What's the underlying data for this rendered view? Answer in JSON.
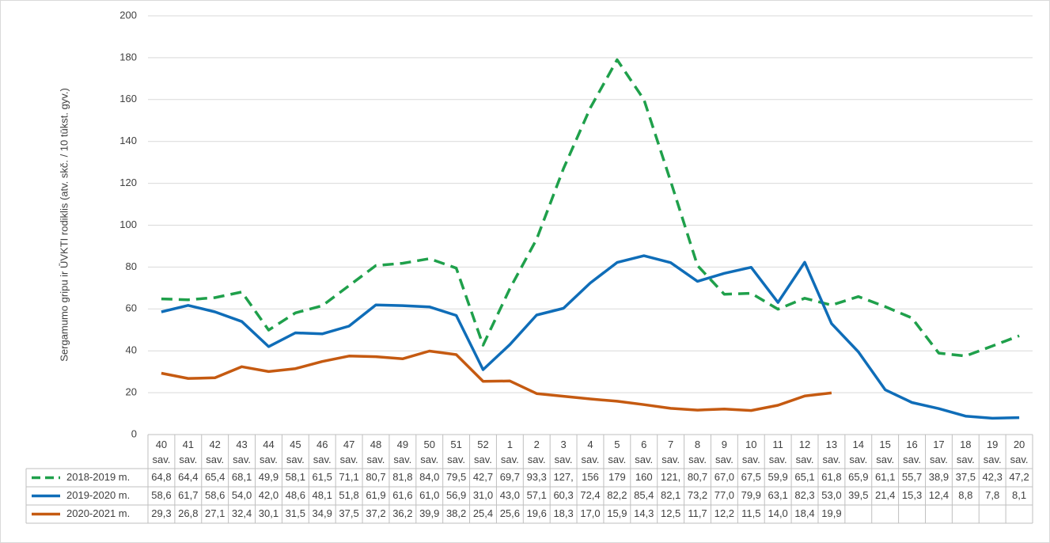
{
  "chart_data": {
    "type": "line",
    "y_label": "Sergamumo gripu ir ŪVKTI rodiklis (atv. skč. / 10 tūkst. gyv.)",
    "categories": [
      "40 sav.",
      "41 sav.",
      "42 sav.",
      "43 sav.",
      "44 sav.",
      "45 sav.",
      "46 sav.",
      "47 sav.",
      "48 sav.",
      "49 sav.",
      "50 sav.",
      "51 sav.",
      "52 sav.",
      "1 sav.",
      "2 sav.",
      "3 sav.",
      "4 sav.",
      "5 sav.",
      "6 sav.",
      "7 sav.",
      "8 sav.",
      "9 sav.",
      "10 sav.",
      "11 sav.",
      "12 sav.",
      "13 sav.",
      "14 sav.",
      "15 sav.",
      "16 sav.",
      "17 sav.",
      "18 sav.",
      "19 sav.",
      "20 sav."
    ],
    "series": [
      {
        "name": "2018-2019 m.",
        "color": "#1fa04b",
        "dashed": true,
        "values": [
          64.8,
          64.4,
          65.4,
          68.1,
          49.9,
          58.1,
          61.5,
          71.1,
          80.7,
          81.8,
          84.0,
          79.5,
          42.7,
          69.7,
          93.3,
          127,
          156,
          179,
          160,
          121,
          80.7,
          67.0,
          67.5,
          59.9,
          65.1,
          61.8,
          65.9,
          61.1,
          55.7,
          38.9,
          37.5,
          42.3,
          47.2
        ],
        "value_labels": [
          "64,8",
          "64,4",
          "65,4",
          "68,1",
          "49,9",
          "58,1",
          "61,5",
          "71,1",
          "80,7",
          "81,8",
          "84,0",
          "79,5",
          "42,7",
          "69,7",
          "93,3",
          "127,",
          "156",
          "179",
          "160",
          "121,",
          "80,7",
          "67,0",
          "67,5",
          "59,9",
          "65,1",
          "61,8",
          "65,9",
          "61,1",
          "55,7",
          "38,9",
          "37,5",
          "42,3",
          "47,2"
        ]
      },
      {
        "name": "2019-2020 m.",
        "color": "#0f6db8",
        "dashed": false,
        "values": [
          58.6,
          61.7,
          58.6,
          54.0,
          42.0,
          48.6,
          48.1,
          51.8,
          61.9,
          61.6,
          61.0,
          56.9,
          31.0,
          43.0,
          57.1,
          60.3,
          72.4,
          82.2,
          85.4,
          82.1,
          73.2,
          77.0,
          79.9,
          63.1,
          82.3,
          53.0,
          39.5,
          21.4,
          15.3,
          12.4,
          8.8,
          7.8,
          8.1
        ],
        "value_labels": [
          "58,6",
          "61,7",
          "58,6",
          "54,0",
          "42,0",
          "48,6",
          "48,1",
          "51,8",
          "61,9",
          "61,6",
          "61,0",
          "56,9",
          "31,0",
          "43,0",
          "57,1",
          "60,3",
          "72,4",
          "82,2",
          "85,4",
          "82,1",
          "73,2",
          "77,0",
          "79,9",
          "63,1",
          "82,3",
          "53,0",
          "39,5",
          "21,4",
          "15,3",
          "12,4",
          "8,8",
          "7,8",
          "8,1"
        ]
      },
      {
        "name": "2020-2021 m.",
        "color": "#c55a11",
        "dashed": false,
        "values": [
          29.3,
          26.8,
          27.1,
          32.4,
          30.1,
          31.5,
          34.9,
          37.5,
          37.2,
          36.2,
          39.9,
          38.2,
          25.4,
          25.6,
          19.6,
          18.3,
          17.0,
          15.9,
          14.3,
          12.5,
          11.7,
          12.2,
          11.5,
          14.0,
          18.4,
          19.9,
          null,
          null,
          null,
          null,
          null,
          null,
          null
        ],
        "value_labels": [
          "29,3",
          "26,8",
          "27,1",
          "32,4",
          "30,1",
          "31,5",
          "34,9",
          "37,5",
          "37,2",
          "36,2",
          "39,9",
          "38,2",
          "25,4",
          "25,6",
          "19,6",
          "18,3",
          "17,0",
          "15,9",
          "14,3",
          "12,5",
          "11,7",
          "12,2",
          "11,5",
          "14,0",
          "18,4",
          "19,9",
          null,
          null,
          null,
          null,
          null,
          null,
          null
        ]
      }
    ],
    "ylim": [
      0,
      200
    ],
    "yticks": [
      0,
      20,
      40,
      60,
      80,
      100,
      120,
      140,
      160,
      180,
      200
    ],
    "grid": true
  }
}
